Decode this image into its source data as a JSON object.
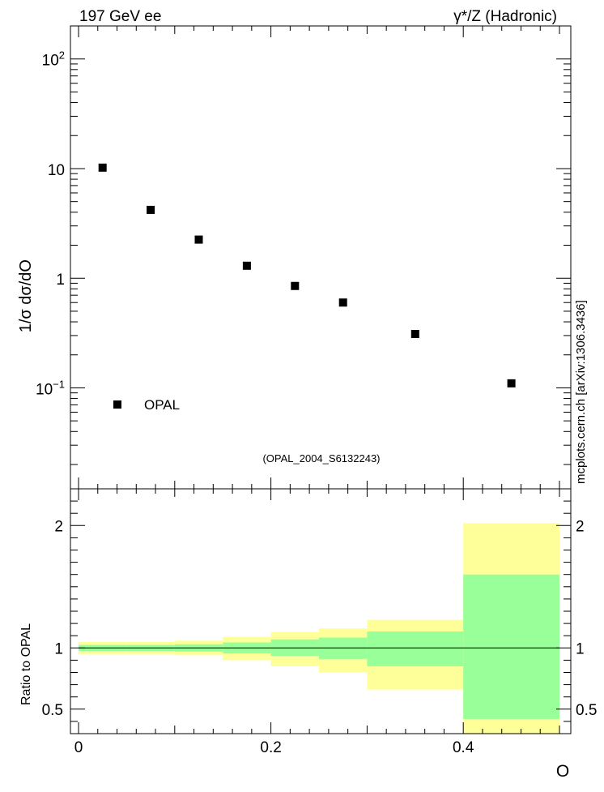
{
  "header": {
    "left_label": "197 GeV ee",
    "right_label": "γ*/Z (Hadronic)"
  },
  "watermark": "mcplots.cern.ch [arXiv:1306.3436]",
  "analysis_tag": "(OPAL_2004_S6132243)",
  "colors": {
    "marker": "#000000",
    "band_inner": "#99ff99",
    "band_outer": "#ffff99",
    "ratio_line": "#000000",
    "analysis_tag": "#999999",
    "watermark": "#777777"
  },
  "chart_data": [
    {
      "type": "scatter",
      "ylabel": "1/σ dσ/dO",
      "yscale": "log",
      "xlim": [
        0,
        0.5
      ],
      "ylim": [
        0.012,
        200
      ],
      "ytick_labels": [
        {
          "value": 100,
          "base": "10",
          "exp": "2"
        },
        {
          "value": 10,
          "base": "10",
          "exp": ""
        },
        {
          "value": 1,
          "base": "1",
          "exp": ""
        },
        {
          "value": 0.1,
          "base": "10",
          "exp": "−1"
        }
      ],
      "legend": {
        "position": "bottom-left",
        "entries": [
          "OPAL"
        ]
      },
      "series": [
        {
          "name": "OPAL",
          "x": [
            0.025,
            0.075,
            0.125,
            0.175,
            0.225,
            0.275,
            0.35,
            0.45
          ],
          "y": [
            10.2,
            4.2,
            2.25,
            1.3,
            0.85,
            0.6,
            0.31,
            0.11
          ]
        }
      ]
    },
    {
      "type": "area",
      "ylabel": "Ratio to OPAL",
      "xlabel": "O",
      "xlim": [
        0,
        0.5
      ],
      "ylim": [
        0.3,
        2.3
      ],
      "xticks": [
        0,
        0.2,
        0.4
      ],
      "xtick_labels": [
        "0",
        "0.2",
        "0.4"
      ],
      "yticks": [
        0.5,
        1,
        2
      ],
      "ytick_labels": [
        "0.5",
        "1",
        "2"
      ],
      "reference_line": 1,
      "bins": [
        {
          "x0": 0.0,
          "x1": 0.05,
          "inner": [
            0.975,
            1.025
          ],
          "outer": [
            0.95,
            1.05
          ]
        },
        {
          "x0": 0.05,
          "x1": 0.1,
          "inner": [
            0.975,
            1.025
          ],
          "outer": [
            0.95,
            1.05
          ]
        },
        {
          "x0": 0.1,
          "x1": 0.15,
          "inner": [
            0.97,
            1.03
          ],
          "outer": [
            0.94,
            1.06
          ]
        },
        {
          "x0": 0.15,
          "x1": 0.2,
          "inner": [
            0.955,
            1.045
          ],
          "outer": [
            0.9,
            1.09
          ]
        },
        {
          "x0": 0.2,
          "x1": 0.25,
          "inner": [
            0.935,
            1.07
          ],
          "outer": [
            0.85,
            1.13
          ]
        },
        {
          "x0": 0.25,
          "x1": 0.3,
          "inner": [
            0.91,
            1.085
          ],
          "outer": [
            0.8,
            1.16
          ]
        },
        {
          "x0": 0.3,
          "x1": 0.4,
          "inner": [
            0.85,
            1.135
          ],
          "outer": [
            0.66,
            1.23
          ]
        },
        {
          "x0": 0.4,
          "x1": 0.5,
          "inner": [
            0.42,
            1.6
          ],
          "outer": [
            0.3,
            2.02
          ]
        }
      ]
    }
  ]
}
